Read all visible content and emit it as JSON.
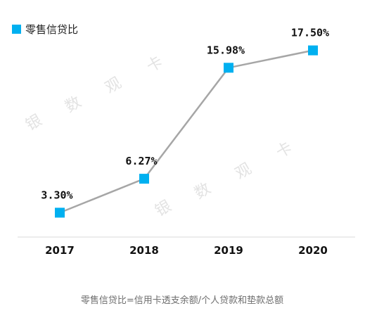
{
  "chart_data": {
    "type": "line",
    "categories": [
      "2017",
      "2018",
      "2019",
      "2020"
    ],
    "series": [
      {
        "name": "零售信贷比",
        "values": [
          3.3,
          6.27,
          15.98,
          17.5
        ],
        "data_labels": [
          "3.30%",
          "6.27%",
          "15.98%",
          "17.50%"
        ],
        "line_color": "#a6a6a6",
        "marker_color": "#00b0f0",
        "marker": "square"
      }
    ],
    "legend": {
      "position": "top-left"
    },
    "grid": false,
    "ylim": [
      0,
      20
    ],
    "title": "",
    "xlabel": "",
    "ylabel": "",
    "footnote": "零售信贷比=信用卡透支余额/个人贷款和垫款总额",
    "watermark": [
      "银",
      "数",
      "观",
      "卡"
    ]
  }
}
